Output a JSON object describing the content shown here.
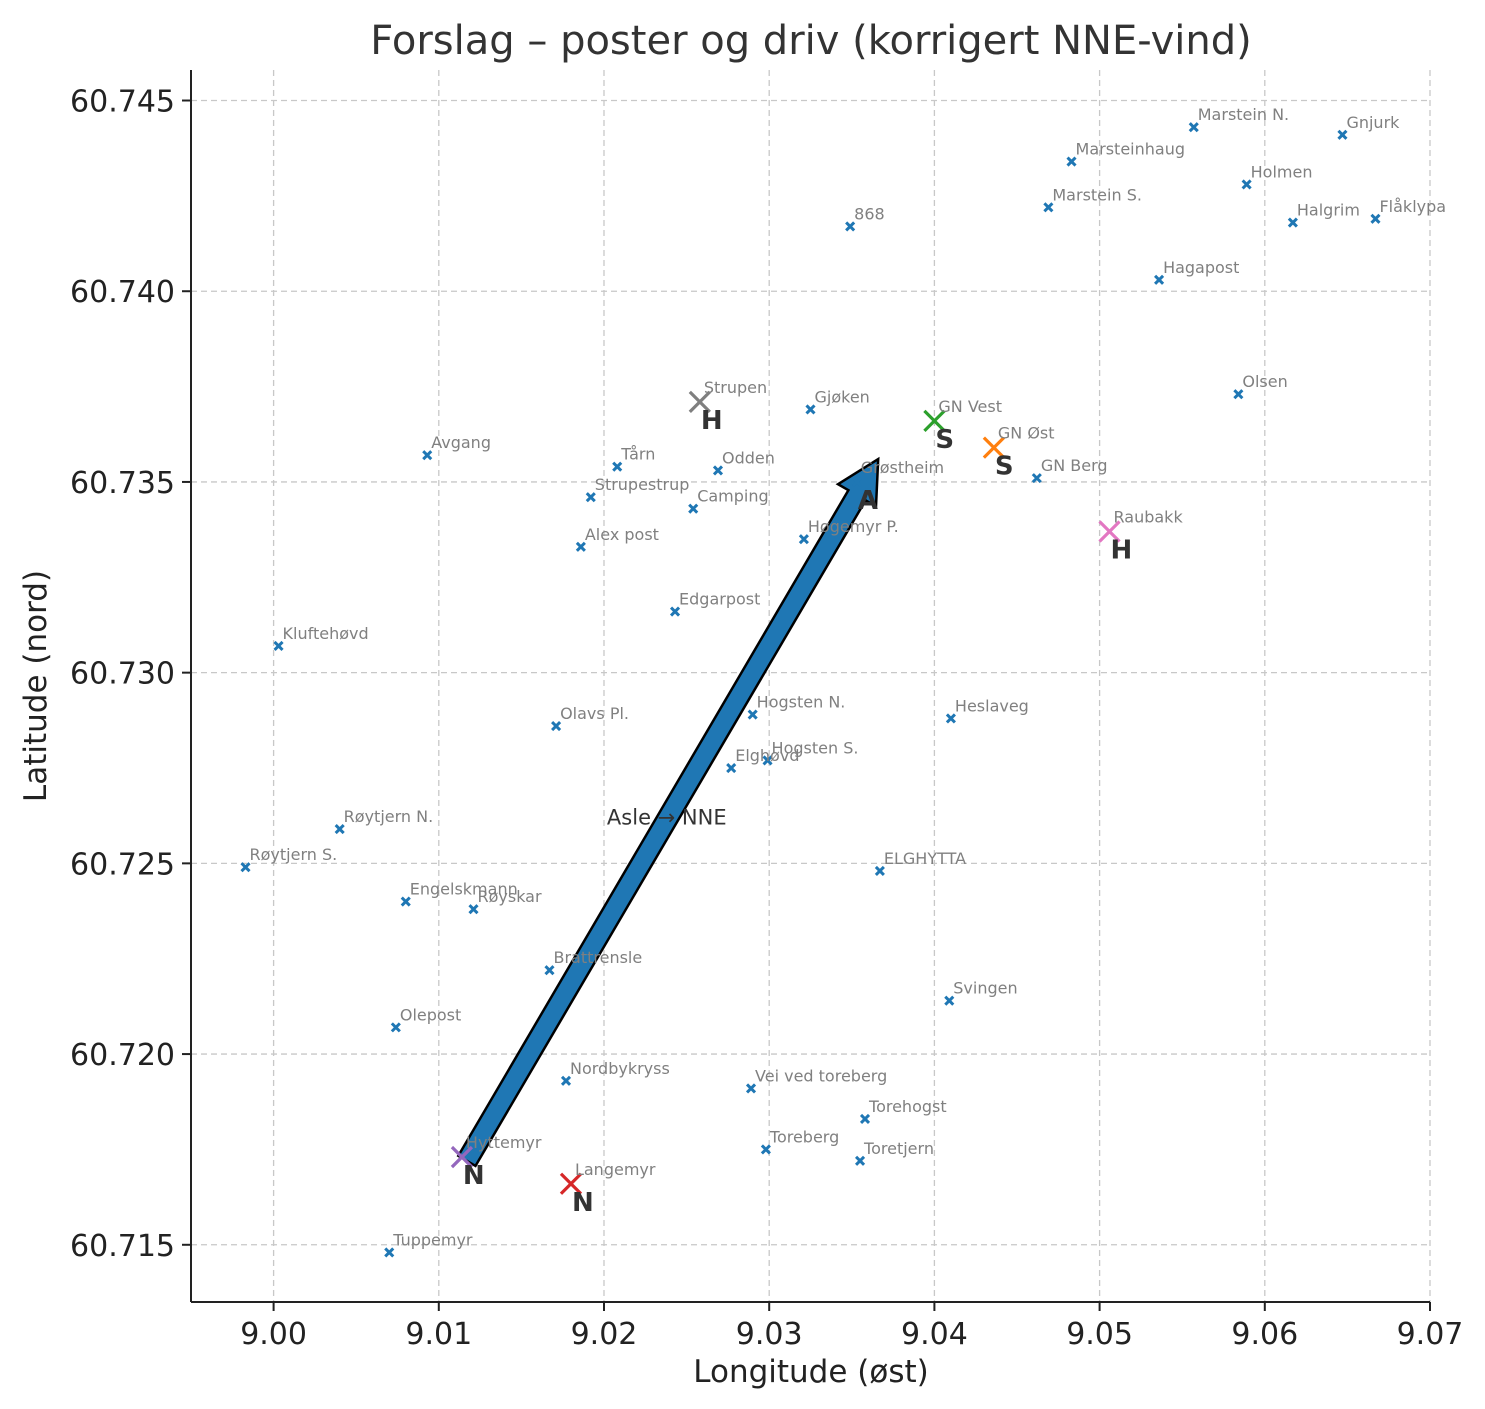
{
  "chart_data": {
    "type": "scatter",
    "title": "Forslag – poster og driv (korrigert NNE-vind)",
    "xlabel": "Longitude (øst)",
    "ylabel": "Latitude (nord)",
    "xlim": [
      8.995,
      9.07
    ],
    "ylim": [
      60.7135,
      60.7458
    ],
    "xticks": [
      {
        "value": 9.0,
        "label": "9.00"
      },
      {
        "value": 9.01,
        "label": "9.01"
      },
      {
        "value": 9.02,
        "label": "9.02"
      },
      {
        "value": 9.03,
        "label": "9.03"
      },
      {
        "value": 9.04,
        "label": "9.04"
      },
      {
        "value": 9.05,
        "label": "9.05"
      },
      {
        "value": 9.06,
        "label": "9.06"
      },
      {
        "value": 9.07,
        "label": "9.07"
      }
    ],
    "yticks": [
      {
        "value": 60.715,
        "label": "60.715"
      },
      {
        "value": 60.72,
        "label": "60.720"
      },
      {
        "value": 60.725,
        "label": "60.725"
      },
      {
        "value": 60.73,
        "label": "60.730"
      },
      {
        "value": 60.735,
        "label": "60.735"
      },
      {
        "value": 60.74,
        "label": "60.740"
      },
      {
        "value": 60.745,
        "label": "60.745"
      }
    ],
    "grid": true,
    "marker_color": "#1f77b4",
    "points": [
      {
        "label": "Marstein N.",
        "x": 9.0557,
        "y": 60.7443
      },
      {
        "label": "Gnjurk",
        "x": 9.0647,
        "y": 60.7441
      },
      {
        "label": "Marsteinhaug",
        "x": 9.0483,
        "y": 60.7434
      },
      {
        "label": "Holmen",
        "x": 9.0589,
        "y": 60.7428
      },
      {
        "label": "Marstein S.",
        "x": 9.0469,
        "y": 60.7422
      },
      {
        "label": "868",
        "x": 9.0349,
        "y": 60.7417
      },
      {
        "label": "Halgrim",
        "x": 9.0617,
        "y": 60.7418
      },
      {
        "label": "Flåklypa",
        "x": 9.0667,
        "y": 60.7419
      },
      {
        "label": "Hagapost",
        "x": 9.0536,
        "y": 60.7403
      },
      {
        "label": "Olsen",
        "x": 9.0584,
        "y": 60.7373
      },
      {
        "label": "Gjøken",
        "x": 9.0325,
        "y": 60.7369
      },
      {
        "label": "Avgang",
        "x": 9.0093,
        "y": 60.7357
      },
      {
        "label": "Tårn",
        "x": 9.0208,
        "y": 60.7354
      },
      {
        "label": "Odden",
        "x": 9.0269,
        "y": 60.7353
      },
      {
        "label": "GN Berg",
        "x": 9.0462,
        "y": 60.7351
      },
      {
        "label": "Strupestrup",
        "x": 9.0192,
        "y": 60.7346
      },
      {
        "label": "Camping",
        "x": 9.0254,
        "y": 60.7343
      },
      {
        "label": "Høgemyr P.",
        "x": 9.0321,
        "y": 60.7335
      },
      {
        "label": "Alex post",
        "x": 9.0186,
        "y": 60.7333
      },
      {
        "label": "Edgarpost",
        "x": 9.0243,
        "y": 60.7316
      },
      {
        "label": "Kluftehøvd",
        "x": 9.0003,
        "y": 60.7307
      },
      {
        "label": "Heslaveg",
        "x": 9.041,
        "y": 60.7288
      },
      {
        "label": "Hogsten N.",
        "x": 9.029,
        "y": 60.7289
      },
      {
        "label": "Olavs Pl.",
        "x": 9.0171,
        "y": 60.7286
      },
      {
        "label": "Hogsten S.",
        "x": 9.0299,
        "y": 60.7277
      },
      {
        "label": "Elghøvd",
        "x": 9.0277,
        "y": 60.7275
      },
      {
        "label": "Røytjern N.",
        "x": 9.004,
        "y": 60.7259
      },
      {
        "label": "Røytjern S.",
        "x": 8.9983,
        "y": 60.7249
      },
      {
        "label": "ELGHYTTA",
        "x": 9.0367,
        "y": 60.7248
      },
      {
        "label": "Engelskmann",
        "x": 9.008,
        "y": 60.724
      },
      {
        "label": "Røyskar",
        "x": 9.0121,
        "y": 60.7238
      },
      {
        "label": "Brattrensle",
        "x": 9.0167,
        "y": 60.7222
      },
      {
        "label": "Svingen",
        "x": 9.0409,
        "y": 60.7214
      },
      {
        "label": "Olepost",
        "x": 9.0074,
        "y": 60.7207
      },
      {
        "label": "Nordbykryss",
        "x": 9.0177,
        "y": 60.7193
      },
      {
        "label": "Vei ved toreberg",
        "x": 9.0289,
        "y": 60.7191
      },
      {
        "label": "Torehogst",
        "x": 9.0358,
        "y": 60.7183
      },
      {
        "label": "Toreberg",
        "x": 9.0298,
        "y": 60.7175
      },
      {
        "label": "Toretjern",
        "x": 9.0355,
        "y": 60.7172
      },
      {
        "label": "Tuppemyr",
        "x": 9.007,
        "y": 60.7148
      }
    ],
    "highlights": [
      {
        "label": "Strupen",
        "role": "H",
        "x": 9.0258,
        "y": 60.7371,
        "color": "#7f7f7f"
      },
      {
        "label": "GN Vest",
        "role": "S",
        "x": 9.04,
        "y": 60.7366,
        "color": "#2ca02c"
      },
      {
        "label": "GN Øst",
        "role": "S",
        "x": 9.0436,
        "y": 60.7359,
        "color": "#ff7f0e"
      },
      {
        "label": "Raubakk",
        "role": "H",
        "x": 9.0506,
        "y": 60.7337,
        "color": "#e377c2"
      },
      {
        "label": "Hyttemyr",
        "role": "N",
        "x": 9.0114,
        "y": 60.7173,
        "color": "#9467bd"
      },
      {
        "label": "Langemyr",
        "role": "N",
        "x": 9.018,
        "y": 60.7166,
        "color": "#d62728"
      },
      {
        "label": "Grøstheim",
        "role": "A",
        "x": 9.0353,
        "y": 60.735,
        "color": null
      }
    ],
    "arrow": {
      "label": "Asle → NNE",
      "from": {
        "x": 9.0117,
        "y": 60.7172
      },
      "to": {
        "x": 9.0366,
        "y": 60.7356
      },
      "label_at": {
        "x": 9.0238,
        "y": 60.7262
      },
      "color": "#1f77b4"
    }
  }
}
